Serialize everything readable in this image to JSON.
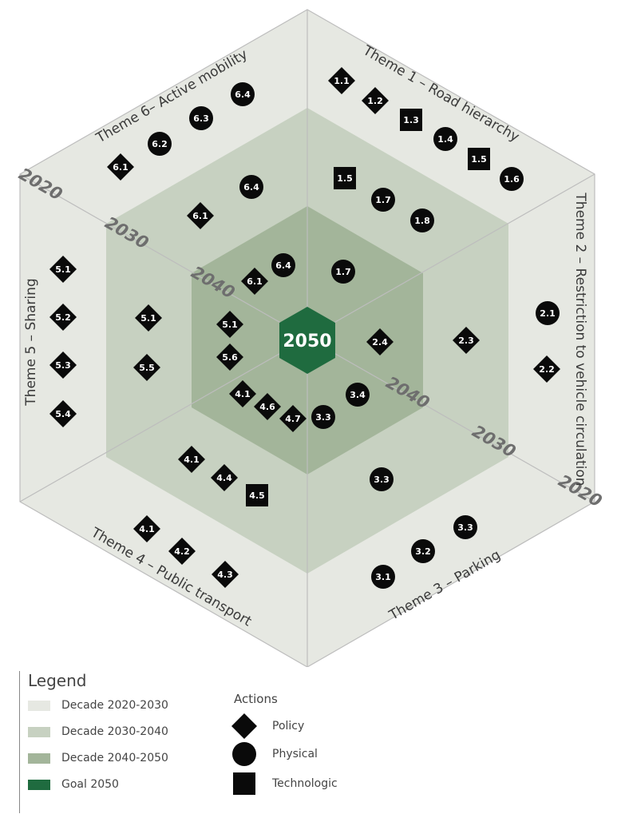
{
  "center_goal": "2050",
  "colors": {
    "decade_2020_2030": "#e6e8e2",
    "decade_2030_2040": "#c7d1c1",
    "decade_2040_2050": "#a3b59a",
    "goal_2050": "#1f6b3f",
    "marker": "#0a0a0a",
    "divider": "#bdbdbd"
  },
  "themes": [
    {
      "id": "theme1",
      "label": "Theme 1 – Road hierarchy"
    },
    {
      "id": "theme2",
      "label": "Theme 2 – Restriction to vehicle circulation"
    },
    {
      "id": "theme3",
      "label": "Theme 3 – Parking"
    },
    {
      "id": "theme4",
      "label": "Theme 4 – Public transport"
    },
    {
      "id": "theme5",
      "label": "Theme 5 – Sharing"
    },
    {
      "id": "theme6",
      "label": "Theme 6– Active mobility"
    }
  ],
  "decade_labels": [
    "2020",
    "2030",
    "2040",
    "2020",
    "2030",
    "2040"
  ],
  "actions": [
    {
      "label": "1.1",
      "shape": "diamond"
    },
    {
      "label": "1.2",
      "shape": "diamond"
    },
    {
      "label": "1.3",
      "shape": "square"
    },
    {
      "label": "1.4",
      "shape": "circle"
    },
    {
      "label": "1.5",
      "shape": "square"
    },
    {
      "label": "1.6",
      "shape": "circle"
    },
    {
      "label": "1.5",
      "shape": "square"
    },
    {
      "label": "1.7",
      "shape": "circle"
    },
    {
      "label": "1.8",
      "shape": "circle"
    },
    {
      "label": "1.7",
      "shape": "circle"
    },
    {
      "label": "2.1",
      "shape": "circle"
    },
    {
      "label": "2.2",
      "shape": "diamond"
    },
    {
      "label": "2.3",
      "shape": "diamond"
    },
    {
      "label": "2.4",
      "shape": "diamond"
    },
    {
      "label": "3.3",
      "shape": "circle"
    },
    {
      "label": "3.2",
      "shape": "circle"
    },
    {
      "label": "3.1",
      "shape": "circle"
    },
    {
      "label": "3.3",
      "shape": "circle"
    },
    {
      "label": "3.4",
      "shape": "circle"
    },
    {
      "label": "3.3",
      "shape": "circle"
    },
    {
      "label": "4.1",
      "shape": "diamond"
    },
    {
      "label": "4.2",
      "shape": "diamond"
    },
    {
      "label": "4.3",
      "shape": "diamond"
    },
    {
      "label": "4.1",
      "shape": "diamond"
    },
    {
      "label": "4.4",
      "shape": "diamond"
    },
    {
      "label": "4.5",
      "shape": "square"
    },
    {
      "label": "4.1",
      "shape": "diamond"
    },
    {
      "label": "4.6",
      "shape": "diamond"
    },
    {
      "label": "4.7",
      "shape": "diamond"
    },
    {
      "label": "5.1",
      "shape": "diamond"
    },
    {
      "label": "5.2",
      "shape": "diamond"
    },
    {
      "label": "5.3",
      "shape": "diamond"
    },
    {
      "label": "5.4",
      "shape": "diamond"
    },
    {
      "label": "5.1",
      "shape": "diamond"
    },
    {
      "label": "5.5",
      "shape": "diamond"
    },
    {
      "label": "5.1",
      "shape": "diamond"
    },
    {
      "label": "5.6",
      "shape": "diamond"
    },
    {
      "label": "6.1",
      "shape": "diamond"
    },
    {
      "label": "6.2",
      "shape": "circle"
    },
    {
      "label": "6.3",
      "shape": "circle"
    },
    {
      "label": "6.4",
      "shape": "circle"
    },
    {
      "label": "6.1",
      "shape": "diamond"
    },
    {
      "label": "6.4",
      "shape": "circle"
    },
    {
      "label": "6.1",
      "shape": "diamond"
    },
    {
      "label": "6.4",
      "shape": "circle"
    }
  ],
  "legend": {
    "title": "Legend",
    "items": [
      {
        "label": "Decade 2020-2030",
        "color": "#e6e8e2"
      },
      {
        "label": "Decade 2030-2040",
        "color": "#c7d1c1"
      },
      {
        "label": "Decade 2040-2050",
        "color": "#a3b59a"
      },
      {
        "label": "Goal 2050",
        "color": "#1f6b3f"
      }
    ],
    "actions_title": "Actions",
    "action_types": [
      {
        "label": "Policy",
        "shape": "diamond"
      },
      {
        "label": "Physical",
        "shape": "circle"
      },
      {
        "label": "Technologic",
        "shape": "square"
      }
    ]
  }
}
